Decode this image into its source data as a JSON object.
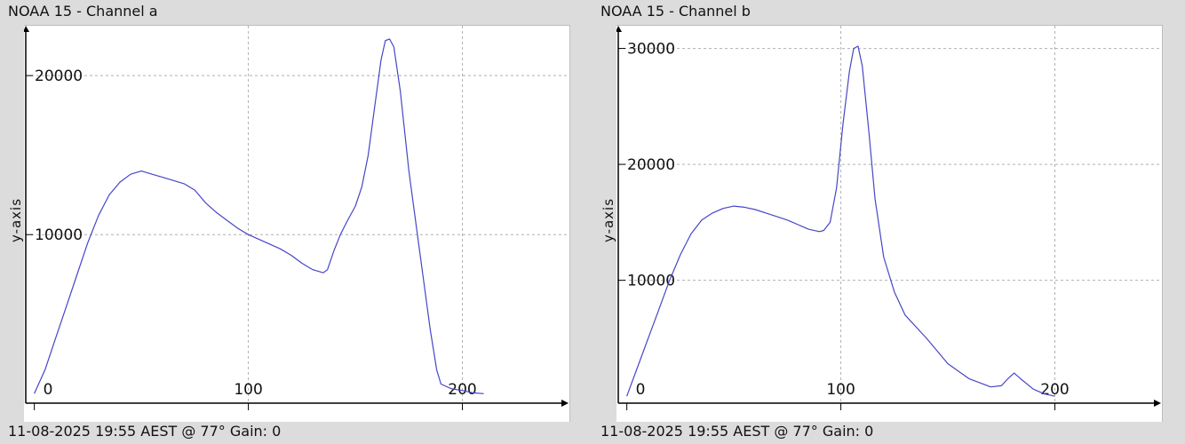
{
  "chart_data": [
    {
      "type": "line",
      "title": "NOAA 15 - Channel a",
      "ylabel": "y-axis",
      "footer": "11-08-2025 19:55 AEST @ 77° Gain: 0",
      "xlim": [
        -4,
        250
      ],
      "ylim": [
        -600,
        22800
      ],
      "x_ticks": [
        0,
        100,
        200
      ],
      "y_ticks": [
        10000,
        20000
      ],
      "x_tick_labels": [
        "0",
        "100",
        "200"
      ],
      "y_tick_labels": [
        "10000",
        "20000"
      ],
      "grid": true,
      "series_color": "#4646c8",
      "series": [
        {
          "x": [
            0,
            5,
            10,
            15,
            20,
            25,
            30,
            35,
            40,
            45,
            50,
            55,
            60,
            65,
            70,
            75,
            80,
            85,
            90,
            95,
            100,
            105,
            110,
            115,
            120,
            125,
            130,
            135,
            137,
            140,
            143,
            146,
            150,
            153,
            156,
            159,
            162,
            164,
            166,
            168,
            171,
            175,
            180,
            185,
            188,
            190,
            195,
            200,
            205,
            210
          ],
          "y": [
            0,
            1500,
            3500,
            5500,
            7500,
            9500,
            11200,
            12500,
            13300,
            13800,
            14000,
            13800,
            13600,
            13400,
            13200,
            12800,
            12000,
            11400,
            10900,
            10400,
            10000,
            9700,
            9400,
            9100,
            8700,
            8200,
            7800,
            7600,
            7800,
            9000,
            10000,
            10800,
            11800,
            13000,
            15000,
            18000,
            21000,
            22200,
            22300,
            21800,
            19000,
            14000,
            9000,
            4000,
            1500,
            600,
            300,
            200,
            50,
            0
          ]
        }
      ]
    },
    {
      "type": "line",
      "title": "NOAA 15 - Channel b",
      "ylabel": "y-axis",
      "footer": "11-08-2025 19:55 AEST @ 77° Gain: 0",
      "xlim": [
        -4,
        250
      ],
      "ylim": [
        -600,
        31500
      ],
      "x_ticks": [
        0,
        100,
        200
      ],
      "y_ticks": [
        10000,
        20000,
        30000
      ],
      "x_tick_labels": [
        "0",
        "100",
        "200"
      ],
      "y_tick_labels": [
        "10000",
        "20000",
        "30000"
      ],
      "grid": true,
      "series_color": "#4646c8",
      "series": [
        {
          "x": [
            0,
            5,
            10,
            15,
            20,
            25,
            30,
            35,
            40,
            45,
            50,
            55,
            60,
            65,
            70,
            75,
            80,
            85,
            90,
            92,
            95,
            98,
            101,
            104,
            106,
            108,
            110,
            113,
            116,
            120,
            125,
            130,
            140,
            150,
            160,
            170,
            175,
            178,
            181,
            184,
            190,
            195,
            200
          ],
          "y": [
            0,
            2500,
            5000,
            7500,
            10000,
            12200,
            14000,
            15200,
            15800,
            16200,
            16400,
            16300,
            16100,
            15800,
            15500,
            15200,
            14800,
            14400,
            14200,
            14300,
            15000,
            18000,
            23500,
            28000,
            30000,
            30200,
            28500,
            23000,
            17000,
            12000,
            9000,
            7000,
            5000,
            2800,
            1500,
            800,
            900,
            1500,
            2000,
            1500,
            600,
            200,
            0
          ]
        }
      ]
    }
  ]
}
